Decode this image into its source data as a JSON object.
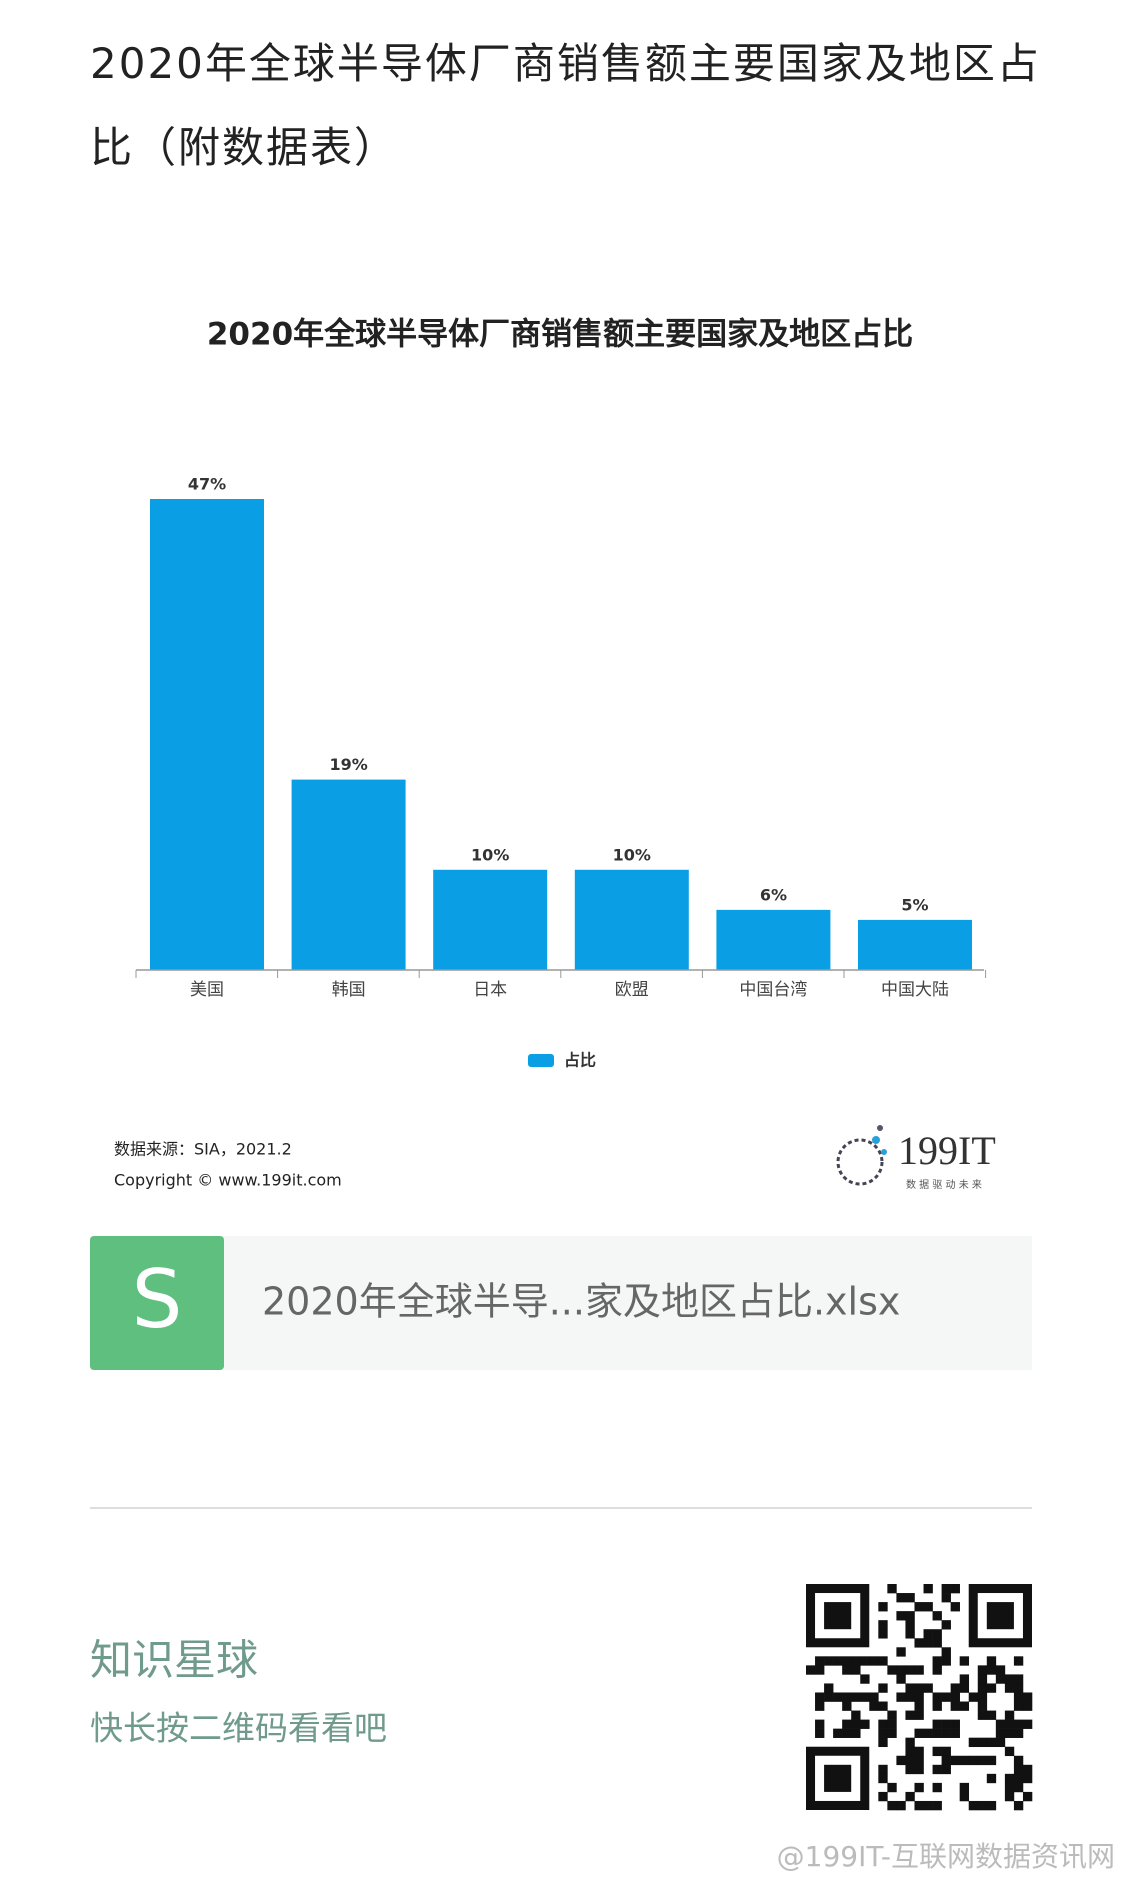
{
  "header": {
    "title": "2020年全球半导体厂商销售额主要国家及地区占比（附数据表）"
  },
  "chart_data": {
    "type": "bar",
    "title": "2020年全球半导体厂商销售额主要国家及地区占比",
    "categories": [
      "美国",
      "韩国",
      "日本",
      "欧盟",
      "中国台湾",
      "中国大陆"
    ],
    "series": [
      {
        "name": "占比",
        "color": "#0a9ee4",
        "values": [
          47,
          19,
          10,
          10,
          6,
          5
        ],
        "value_labels": [
          "47%",
          "19%",
          "10%",
          "10%",
          "6%",
          "5%"
        ]
      }
    ],
    "source": "数据来源：SIA，2021.2",
    "copyright": "Copyright ©  www.199it.com",
    "logo": {
      "text": "199IT",
      "tagline": "数 据 驱 动 未 来"
    }
  },
  "attachment": {
    "icon": "S",
    "filename": "2020年全球半导...家及地区占比.xlsx"
  },
  "footer": {
    "title": "知识星球",
    "subtitle": "快长按二维码看看吧"
  },
  "watermark": "@199IT-互联网数据资讯网"
}
